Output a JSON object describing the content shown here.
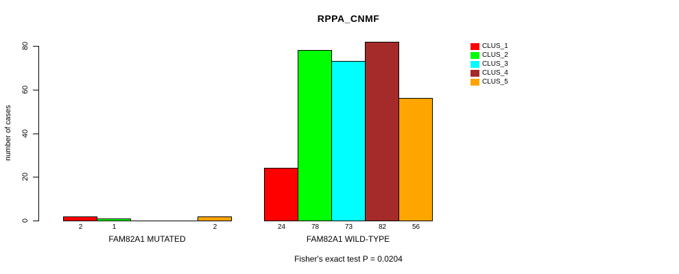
{
  "page": {
    "background": "#FFFFFF"
  },
  "chart_data": {
    "type": "bar",
    "title": "RPPA_CNMF",
    "xlabel": "",
    "ylabel": "number of cases",
    "ylim": [
      0,
      80
    ],
    "yticks": [
      0,
      20,
      40,
      60,
      80
    ],
    "grid": false,
    "legend_position": "right",
    "categories": [
      "FAM82A1 MUTATED",
      "FAM82A1 WILD-TYPE"
    ],
    "series": [
      {
        "name": "CLUS_1",
        "color": "#FF0000",
        "values": [
          2,
          24
        ]
      },
      {
        "name": "CLUS_2",
        "color": "#00FF00",
        "values": [
          1,
          78
        ]
      },
      {
        "name": "CLUS_3",
        "color": "#00FFFF",
        "values": [
          0,
          73
        ]
      },
      {
        "name": "CLUS_4",
        "color": "#A52A2A",
        "values": [
          0,
          82
        ]
      },
      {
        "name": "CLUS_5",
        "color": "#FFA500",
        "values": [
          2,
          56
        ]
      }
    ],
    "bar_value_labels": [
      [
        "2",
        "1",
        "",
        "",
        "2"
      ],
      [
        "24",
        "78",
        "73",
        "82",
        "56"
      ]
    ],
    "annotation": "Fisher's exact test P = 0.0204"
  }
}
